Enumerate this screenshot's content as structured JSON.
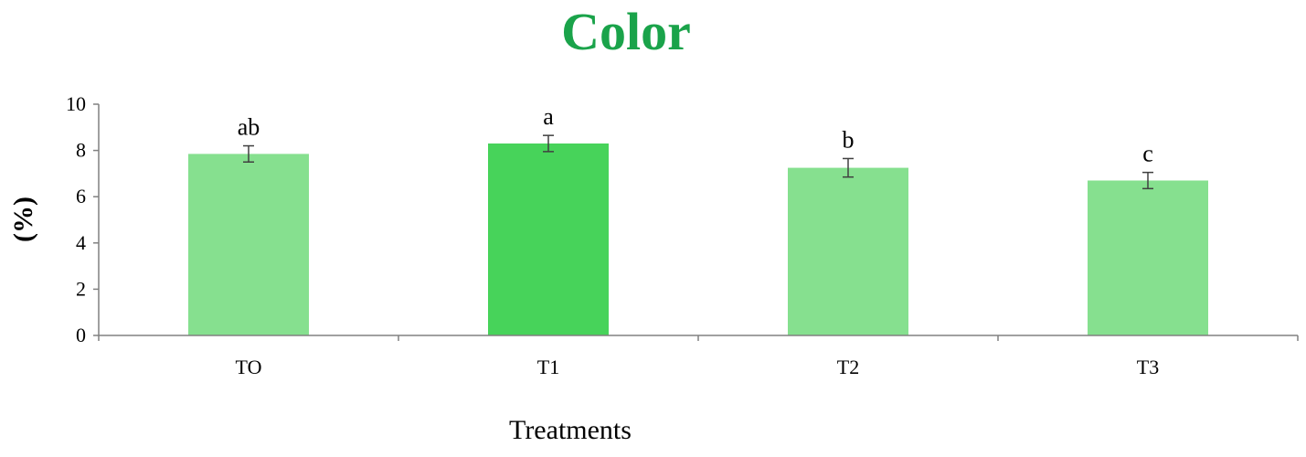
{
  "chart_data": {
    "type": "bar",
    "title": "Color",
    "xlabel": "Treatments",
    "ylabel": "(%)",
    "categories": [
      "TO",
      "T1",
      "T2",
      "T3"
    ],
    "values": [
      7.85,
      8.3,
      7.25,
      6.7
    ],
    "errors": [
      0.35,
      0.35,
      0.4,
      0.35
    ],
    "significance": [
      "ab",
      "a",
      "b",
      "c"
    ],
    "ylim": [
      0,
      10
    ],
    "yticks": [
      "0",
      "2",
      "4",
      "6",
      "8",
      "10"
    ],
    "grid": false,
    "legend": "none"
  },
  "colors": {
    "title": "#1aa34a",
    "bar_default": "#86e08f",
    "bar_highlight": "#47d35a",
    "highlight_index": 1,
    "axis": "#808080",
    "error_bar": "#404040"
  }
}
